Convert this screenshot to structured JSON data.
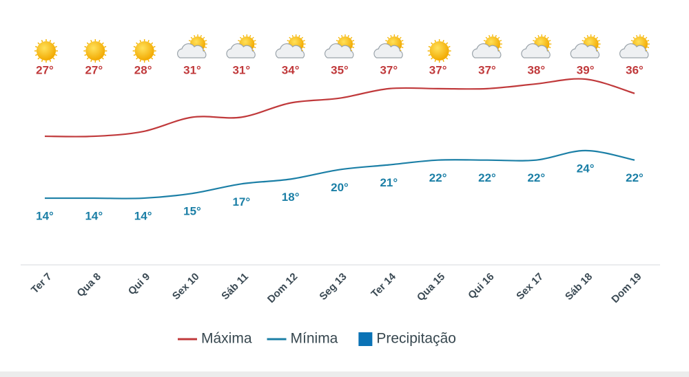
{
  "chart_data": {
    "type": "line",
    "categories": [
      "Ter 7",
      "Qua 8",
      "Qui 9",
      "Sex 10",
      "Sáb 11",
      "Dom 12",
      "Seg 13",
      "Ter 14",
      "Qua 15",
      "Qui 16",
      "Sex 17",
      "Sáb 18",
      "Dom 19"
    ],
    "conditions": [
      "sun",
      "sun",
      "sun",
      "partly-cloudy",
      "partly-cloudy",
      "partly-cloudy",
      "partly-cloudy",
      "partly-cloudy",
      "sun",
      "partly-cloudy",
      "partly-cloudy",
      "partly-cloudy",
      "partly-cloudy"
    ],
    "series": [
      {
        "name": "Máxima",
        "color": "#c0393b",
        "values": [
          27,
          27,
          28,
          31,
          31,
          34,
          35,
          37,
          37,
          37,
          38,
          39,
          36
        ],
        "value_labels": [
          "27°",
          "27°",
          "28°",
          "31°",
          "31°",
          "34°",
          "35°",
          "37°",
          "37°",
          "37°",
          "38°",
          "39°",
          "36°"
        ]
      },
      {
        "name": "Mínima",
        "color": "#1b7fa6",
        "values": [
          14,
          14,
          14,
          15,
          17,
          18,
          20,
          21,
          22,
          22,
          22,
          24,
          22
        ],
        "value_labels": [
          "14°",
          "14°",
          "14°",
          "15°",
          "17°",
          "18°",
          "20°",
          "21°",
          "22°",
          "22°",
          "22°",
          "24°",
          "22°"
        ]
      }
    ],
    "extra_legend": {
      "name": "Precipitação",
      "color": "#0a72b5"
    },
    "ylim": [
      0,
      52
    ]
  }
}
